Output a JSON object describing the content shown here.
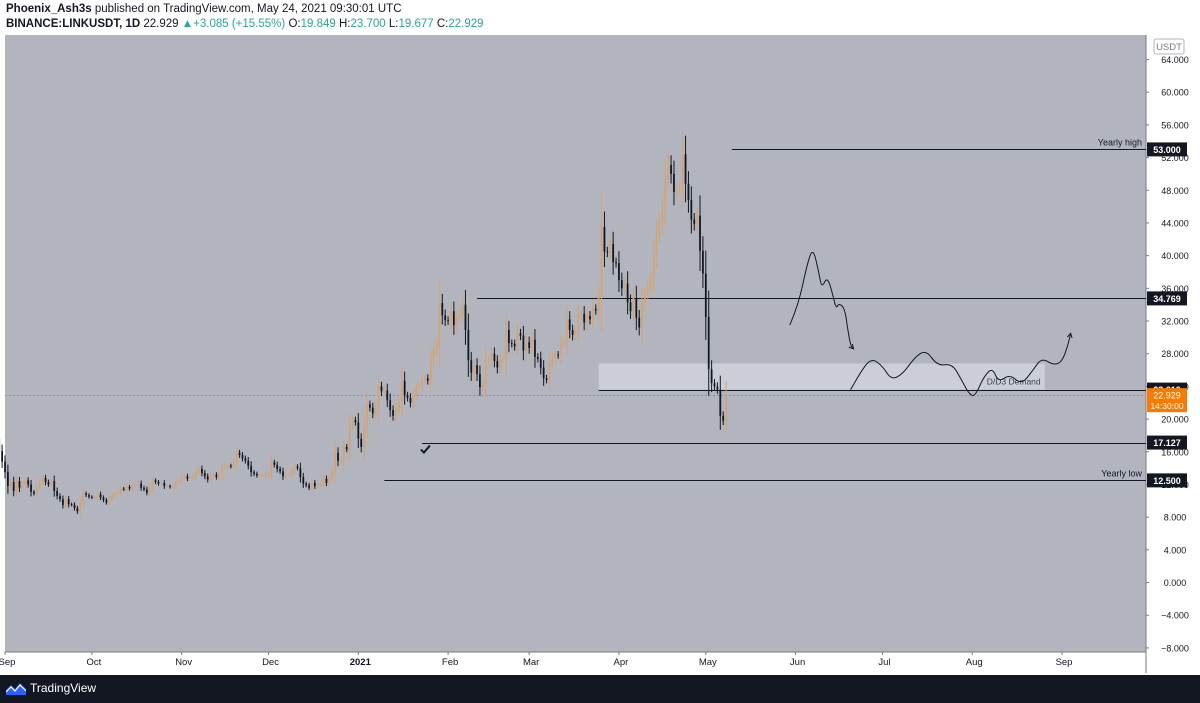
{
  "header": {
    "author": "Phoenix_Ash3s",
    "published_text": "published on TradingView.com, May 24, 2021 09:30:01 UTC",
    "symbol": "BINANCE:LINKUSDT, 1D",
    "last_price": "22.929",
    "change": "+3.085 (+15.55%)",
    "open_label": "O:",
    "open": "19.849",
    "high_label": "H:",
    "high": "23.700",
    "low_label": "L:",
    "low": "19.677",
    "close_label": "C:",
    "close": "22.929"
  },
  "footer": {
    "brand": "TradingView"
  },
  "colors": {
    "chart_bg": "#b2b5be",
    "up_candle": "#d6a36f",
    "down_candle": "#131722",
    "last_price": "#f57c00",
    "axis_bg": "#ffffff"
  },
  "chart_data": {
    "type": "candlestick",
    "currency_label": "USDT",
    "y_scale": "linear",
    "ylim": [
      -8.5,
      67
    ],
    "y_ticks": [
      64,
      60,
      56,
      52,
      48,
      44,
      40,
      36,
      32,
      28,
      24,
      20,
      16,
      12,
      8,
      4,
      0,
      -4,
      -8
    ],
    "y_tick_labels": [
      "64.000",
      "60.000",
      "56.000",
      "52.000",
      "48.000",
      "44.000",
      "40.000",
      "36.000",
      "32.000",
      "28.000",
      "24.000",
      "20.000",
      "16.000",
      "12.000",
      "8.000",
      "4.000",
      "0.000",
      "−4.000",
      "−8.000"
    ],
    "x_start": "2020-09-01",
    "x_end": "2021-09-30",
    "x_ticks": [
      {
        "date": "2020-09-01",
        "label": "Sep",
        "bold": false
      },
      {
        "date": "2020-10-01",
        "label": "Oct",
        "bold": false
      },
      {
        "date": "2020-11-01",
        "label": "Nov",
        "bold": false
      },
      {
        "date": "2020-12-01",
        "label": "Dec",
        "bold": false
      },
      {
        "date": "2021-01-01",
        "label": "2021",
        "bold": true
      },
      {
        "date": "2021-02-01",
        "label": "Feb",
        "bold": false
      },
      {
        "date": "2021-03-01",
        "label": "Mar",
        "bold": false
      },
      {
        "date": "2021-04-01",
        "label": "Apr",
        "bold": false
      },
      {
        "date": "2021-05-01",
        "label": "May",
        "bold": false
      },
      {
        "date": "2021-06-01",
        "label": "Jun",
        "bold": false
      },
      {
        "date": "2021-07-01",
        "label": "Jul",
        "bold": false
      },
      {
        "date": "2021-08-01",
        "label": "Aug",
        "bold": false
      },
      {
        "date": "2021-09-01",
        "label": "Sep",
        "bold": false
      }
    ],
    "first_candle_date": "2020-08-29",
    "closes": [
      17.6,
      16.1,
      14.8,
      13.5,
      11.8,
      12.3,
      11.2,
      12.4,
      11.6,
      12.1,
      12.5,
      12.0,
      11.1,
      10.9,
      11.6,
      12.3,
      12.8,
      12.3,
      12.0,
      12.4,
      11.2,
      10.6,
      10.2,
      9.5,
      10.2,
      9.6,
      9.5,
      9.1,
      8.7,
      9.8,
      10.9,
      10.7,
      10.5,
      10.4,
      10.4,
      10.8,
      10.4,
      10.1,
      9.8,
      10.2,
      10.7,
      10.9,
      11.0,
      11.5,
      11.4,
      11.7,
      11.5,
      11.9,
      12.0,
      12.1,
      11.6,
      11.4,
      11.0,
      11.6,
      12.5,
      12.3,
      12.1,
      12.2,
      11.8,
      11.8,
      11.7,
      11.7,
      12.3,
      12.4,
      12.9,
      13.0,
      12.7,
      12.9,
      13.0,
      13.6,
      13.9,
      13.4,
      13.0,
      12.6,
      13.1,
      13.2,
      12.9,
      13.3,
      14.2,
      14.3,
      14.3,
      14.2,
      14.7,
      15.9,
      15.6,
      15.2,
      14.9,
      14.3,
      13.5,
      13.3,
      13.1,
      13.1,
      13.1,
      13.2,
      13.4,
      14.7,
      14.4,
      13.9,
      13.6,
      13.0,
      13.2,
      13.2,
      13.6,
      14.2,
      14.0,
      12.9,
      12.1,
      11.9,
      11.6,
      12.2,
      11.8,
      11.8,
      12.1,
      12.7,
      12.2,
      12.8,
      13.6,
      15.9,
      14.9,
      15.0,
      16.6,
      16.3,
      19.2,
      19.9,
      19.6,
      17.6,
      16.6,
      19.2,
      21.8,
      21.4,
      20.7,
      21.4,
      24.0,
      23.4,
      23.5,
      22.3,
      21.1,
      20.4,
      21.3,
      22.0,
      24.7,
      22.9,
      22.6,
      22.0,
      23.0,
      23.9,
      24.0,
      24.7,
      25.0,
      24.7,
      27.1,
      28.5,
      29.1,
      34.2,
      32.7,
      32.1,
      32.0,
      33.2,
      31.5,
      32.5,
      32.8,
      34.0,
      30.9,
      27.2,
      25.7,
      26.6,
      25.5,
      23.9,
      24.3,
      27.2,
      27.3,
      28.0,
      27.1,
      26.3,
      27.2,
      27.2,
      30.9,
      29.3,
      29.2,
      28.9,
      30.5,
      30.2,
      28.4,
      29.4,
      28.7,
      29.7,
      27.6,
      27.4,
      26.3,
      25.0,
      24.8,
      26.8,
      27.5,
      27.9,
      27.8,
      29.2,
      29.4,
      32.2,
      30.9,
      30.3,
      30.8,
      32.7,
      32.9,
      31.8,
      32.6,
      32.2,
      33.5,
      33.3,
      35.1,
      43.5,
      40.5,
      40.4,
      41.4,
      39.2,
      39.1,
      37.0,
      36.0,
      36.6,
      34.3,
      33.2,
      34.8,
      32.4,
      31.2,
      34.2,
      35.3,
      36.2,
      37.3,
      40.1,
      42.7,
      44.0,
      46.0,
      49.5,
      51.1,
      50.0,
      47.8,
      48.2,
      48.2,
      52.4,
      48.8,
      46.8,
      44.4,
      43.9,
      44.9,
      40.6,
      37.8,
      32.5,
      26.1,
      24.4,
      24.0,
      23.6,
      20.4,
      19.8,
      22.9
    ],
    "levels": [
      {
        "value": 53.0,
        "label": "53.000",
        "start": "2021-05-10",
        "note": "Yearly high"
      },
      {
        "value": 34.769,
        "label": "34.769",
        "start": "2021-02-11",
        "note": ""
      },
      {
        "value": 23.61,
        "label": "23.610",
        "start": "2021-03-25",
        "note": ""
      },
      {
        "value": 17.127,
        "label": "17.127",
        "start": "2021-01-23",
        "note": ""
      },
      {
        "value": 12.5,
        "label": "12.500",
        "start": "2021-01-10",
        "note": "Yearly low"
      }
    ],
    "zone": {
      "label": "D/D3 Demand",
      "top": 26.8,
      "bottom": 23.61,
      "start": "2021-03-25",
      "end": "2021-08-26"
    },
    "last_price": {
      "value": 22.929,
      "label": "22.929",
      "countdown": "14:30:00"
    },
    "forecast_down": [
      [
        "2021-05-30",
        31.5
      ],
      [
        "2021-06-02",
        34
      ],
      [
        "2021-06-05",
        39
      ],
      [
        "2021-06-07",
        41
      ],
      [
        "2021-06-09",
        38
      ],
      [
        "2021-06-10",
        36
      ],
      [
        "2021-06-12",
        37.5
      ],
      [
        "2021-06-14",
        35
      ],
      [
        "2021-06-15",
        33.5
      ],
      [
        "2021-06-16",
        34.2
      ],
      [
        "2021-06-18",
        33.5
      ],
      [
        "2021-06-19",
        31
      ],
      [
        "2021-06-20",
        29
      ],
      [
        "2021-06-21",
        28.6
      ]
    ],
    "forecast_side": [
      [
        "2021-06-20",
        23.6
      ],
      [
        "2021-06-23",
        25.5
      ],
      [
        "2021-06-27",
        27.5
      ],
      [
        "2021-07-01",
        26.5
      ],
      [
        "2021-07-04",
        24.8
      ],
      [
        "2021-07-08",
        25.5
      ],
      [
        "2021-07-12",
        27.5
      ],
      [
        "2021-07-16",
        28.5
      ],
      [
        "2021-07-20",
        26.5
      ],
      [
        "2021-07-25",
        26.8
      ],
      [
        "2021-07-28",
        25
      ],
      [
        "2021-07-31",
        23
      ],
      [
        "2021-08-02",
        22.8
      ],
      [
        "2021-08-05",
        25.2
      ],
      [
        "2021-08-08",
        26.3
      ],
      [
        "2021-08-10",
        24.5
      ],
      [
        "2021-08-14",
        25.5
      ],
      [
        "2021-08-18",
        24.2
      ],
      [
        "2021-08-22",
        26
      ],
      [
        "2021-08-25",
        27.5
      ],
      [
        "2021-08-29",
        26.6
      ],
      [
        "2021-09-01",
        27
      ],
      [
        "2021-09-03",
        29
      ],
      [
        "2021-09-04",
        30.5
      ]
    ],
    "checkmark_date": "2021-01-24",
    "grid": false,
    "legend": "none"
  }
}
